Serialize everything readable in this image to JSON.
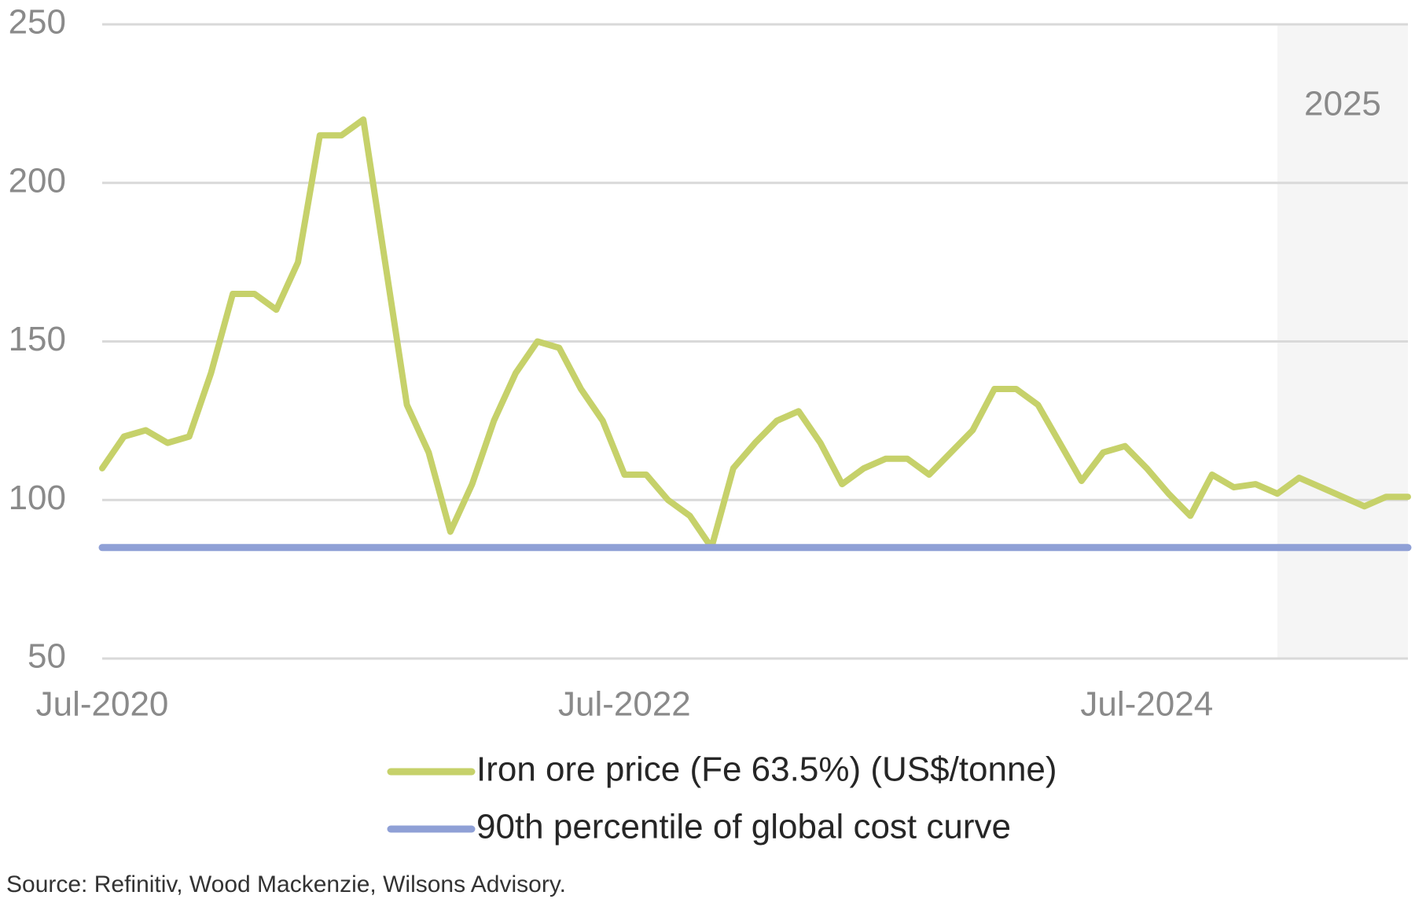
{
  "chart_data": {
    "type": "line",
    "x": [
      "2020-07",
      "2020-08",
      "2020-09",
      "2020-10",
      "2020-11",
      "2020-12",
      "2021-01",
      "2021-02",
      "2021-03",
      "2021-04",
      "2021-05",
      "2021-06",
      "2021-07",
      "2021-08",
      "2021-09",
      "2021-10",
      "2021-11",
      "2021-12",
      "2022-01",
      "2022-02",
      "2022-03",
      "2022-04",
      "2022-05",
      "2022-06",
      "2022-07",
      "2022-08",
      "2022-09",
      "2022-10",
      "2022-11",
      "2022-12",
      "2023-01",
      "2023-02",
      "2023-03",
      "2023-04",
      "2023-05",
      "2023-06",
      "2023-07",
      "2023-08",
      "2023-09",
      "2023-10",
      "2023-11",
      "2023-12",
      "2024-01",
      "2024-02",
      "2024-03",
      "2024-04",
      "2024-05",
      "2024-06",
      "2024-07",
      "2024-08",
      "2024-09",
      "2024-10",
      "2024-11",
      "2024-12",
      "2025-01",
      "2025-02",
      "2025-03",
      "2025-04",
      "2025-05",
      "2025-06",
      "2025-07"
    ],
    "series": [
      {
        "name": "Iron ore price (Fe 63.5%) (US$/tonne)",
        "color": "#c6d16a",
        "values": [
          110,
          120,
          122,
          118,
          120,
          140,
          165,
          165,
          160,
          175,
          215,
          215,
          220,
          175,
          130,
          115,
          90,
          105,
          125,
          140,
          150,
          148,
          135,
          125,
          108,
          108,
          100,
          95,
          85,
          110,
          118,
          125,
          128,
          118,
          105,
          110,
          113,
          113,
          108,
          115,
          122,
          135,
          135,
          130,
          118,
          106,
          115,
          117,
          110,
          102,
          95,
          108,
          104,
          105,
          102,
          107,
          104,
          101,
          98,
          101,
          101
        ]
      },
      {
        "name": "90th percentile of global cost curve",
        "color": "#8fa0d6",
        "x": [
          "2020-07",
          "2025-07"
        ],
        "values": [
          85,
          85
        ]
      }
    ],
    "xlim": [
      "2020-07",
      "2025-07"
    ],
    "xticks": [
      {
        "value": "2020-07",
        "label": "Jul-2020"
      },
      {
        "value": "2022-07",
        "label": "Jul-2022"
      },
      {
        "value": "2024-07",
        "label": "Jul-2024"
      }
    ],
    "ylim": [
      50,
      250
    ],
    "yticks": [
      50,
      100,
      150,
      200,
      250
    ],
    "grid": true,
    "shade": {
      "from": "2025-01",
      "label": "2025"
    },
    "source": "Source: Refinitiv, Wood Mackenzie, Wilsons Advisory."
  }
}
